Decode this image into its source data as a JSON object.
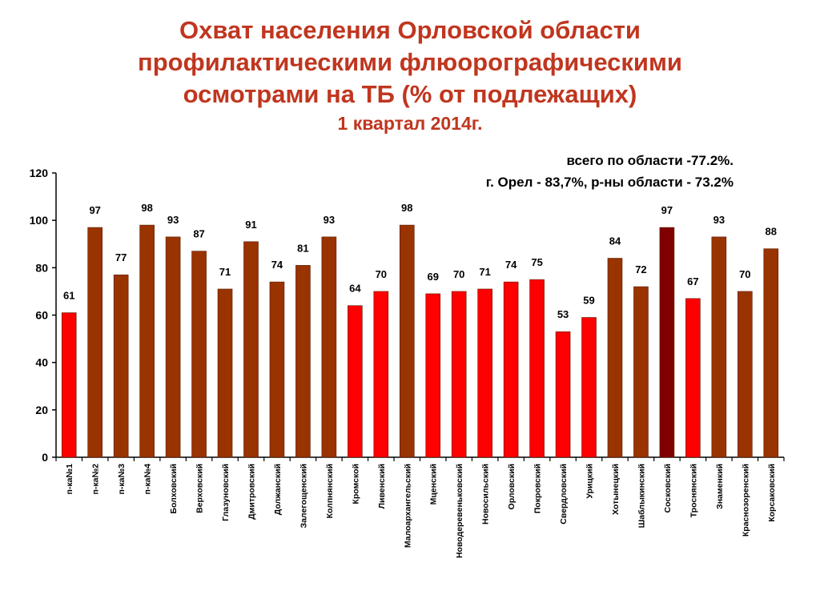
{
  "title_lines": [
    "Охват населения Орловской области",
    "профилактическими флюорографическими",
    "осмотрами на ТБ (% от  подлежащих)"
  ],
  "subtitle": "1 квартал 2014г.",
  "note_lines": [
    "всего по области -77.2%.",
    "г. Орел - 83,7%, р-ны области - 73.2%"
  ],
  "colors": {
    "title": "#c0361f",
    "city": "#ff0000",
    "district_brown": "#993300",
    "highlight": "#800000"
  },
  "chart_data": {
    "type": "bar",
    "ylim": [
      0,
      120
    ],
    "yticks": [
      0,
      20,
      40,
      60,
      80,
      100,
      120
    ],
    "categories": [
      "п-ка№1",
      "п-ка№2",
      "п-ка№3",
      "п-ка№4",
      "Болховский",
      "Верховский",
      "Глазуновский",
      "Дмитровский",
      "Должанский",
      "Залегощенский",
      "Колпнянский",
      "Кромской",
      "Ливенский",
      "Малоархангельский",
      "Мценский",
      "Новодеревеньковский",
      "Новосильский",
      "Орловский",
      "Покровский",
      "Свердловский",
      "Урицкий",
      "Хотынецкий",
      "Шаблыкинский",
      "Сосковский",
      "Троснянский",
      "Знаменкий",
      "Краснозоренский",
      "Корсаковский"
    ],
    "values": [
      61,
      97,
      77,
      98,
      93,
      87,
      71,
      91,
      74,
      81,
      93,
      64,
      70,
      98,
      69,
      70,
      71,
      74,
      75,
      53,
      59,
      84,
      72,
      97,
      67,
      93,
      70,
      88
    ],
    "bar_colors": [
      "#ff0000",
      "#993300",
      "#993300",
      "#993300",
      "#993300",
      "#993300",
      "#993300",
      "#993300",
      "#993300",
      "#993300",
      "#993300",
      "#ff0000",
      "#ff0000",
      "#993300",
      "#ff0000",
      "#ff0000",
      "#ff0000",
      "#ff0000",
      "#ff0000",
      "#ff0000",
      "#ff0000",
      "#993300",
      "#993300",
      "#800000",
      "#ff0000",
      "#993300",
      "#993300",
      "#993300"
    ]
  }
}
